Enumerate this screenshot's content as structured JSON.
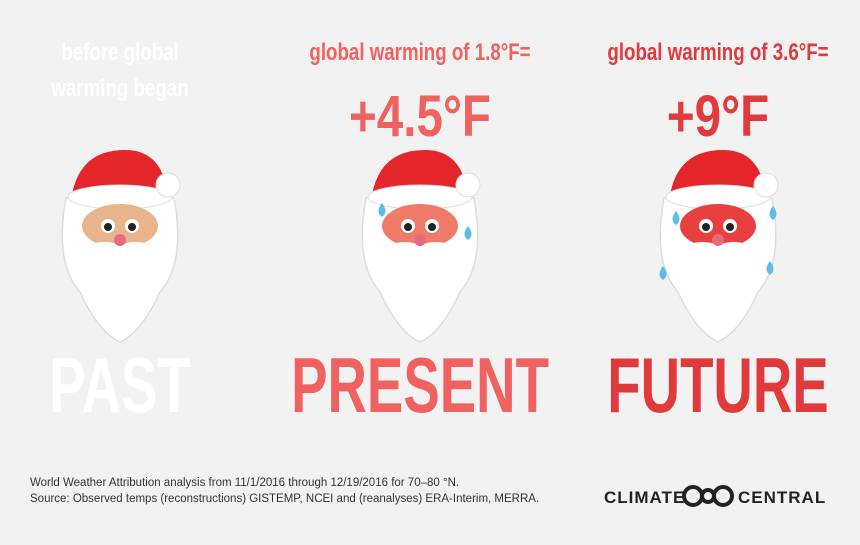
{
  "columns": [
    {
      "subtitle": [
        "before global",
        "warming began"
      ],
      "label": "PAST",
      "color": "#ffffff"
    },
    {
      "subtitle": [
        "global warming of 1.8°F="
      ],
      "value": "+4.5°F",
      "label": "PRESENT",
      "color": "#f0625f"
    },
    {
      "subtitle": [
        "global warming of 3.6°F="
      ],
      "value": "+9°F",
      "label": "FUTURE",
      "color": "#e03a3c"
    }
  ],
  "footer": {
    "lines": [
      "World Weather Attribution analysis from 11/1/2016 through 12/19/2016 for 70–80 °N.",
      "Source: Observed temps (reconstructions) GISTEMP, NCEI and (reanalyses) ERA-Interim, MERRA."
    ]
  },
  "logo": {
    "left": "CLIMATE",
    "right": "CENTRAL"
  }
}
